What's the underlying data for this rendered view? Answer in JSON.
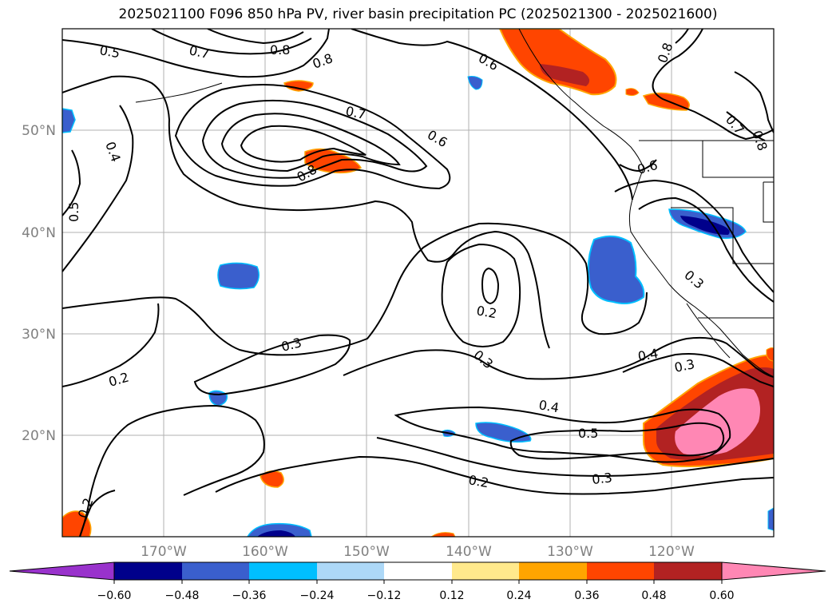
{
  "title": "2025021100 F096 850 hPa PV, river basin precipitation PC (2025021300 - 2025021600)",
  "lat_labels": [
    "50°N",
    "40°N",
    "30°N",
    "20°N"
  ],
  "lon_labels": [
    "170°W",
    "160°W",
    "150°W",
    "140°W",
    "130°W",
    "120°W"
  ],
  "contour_labels": [
    "0.5",
    "0.7",
    "0.8",
    "0.8",
    "0.6",
    "0.8",
    "0.8",
    "0.7",
    "0.7",
    "0.6",
    "0.4",
    "0.5",
    "0.8",
    "0.6",
    "0.2",
    "0.3",
    "0.3",
    "0.2",
    "0.3",
    "0.4",
    "0.3",
    "0.4",
    "0.5",
    "0.3",
    "0.2",
    "0.2"
  ],
  "colorbar": {
    "ticks": [
      "−0.60",
      "−0.48",
      "−0.36",
      "−0.24",
      "−0.12",
      "0.12",
      "0.24",
      "0.36",
      "0.48",
      "0.60"
    ],
    "colors": [
      "#9932cc",
      "#00008b",
      "#3a5fcd",
      "#00bfff",
      "#add8f7",
      "#ffffff",
      "#ffe98c",
      "#ffa500",
      "#ff4500",
      "#b22222",
      "#ff87b4"
    ]
  },
  "colors": {
    "neg_dark": "#00008b",
    "neg_mid": "#3a5fcd",
    "neg_light": "#00bfff",
    "pos_yellow": "#ffe98c",
    "pos_orange": "#ffa500",
    "pos_red": "#ff4500",
    "pos_darkred": "#b22222",
    "pos_pink": "#ff87b4"
  }
}
